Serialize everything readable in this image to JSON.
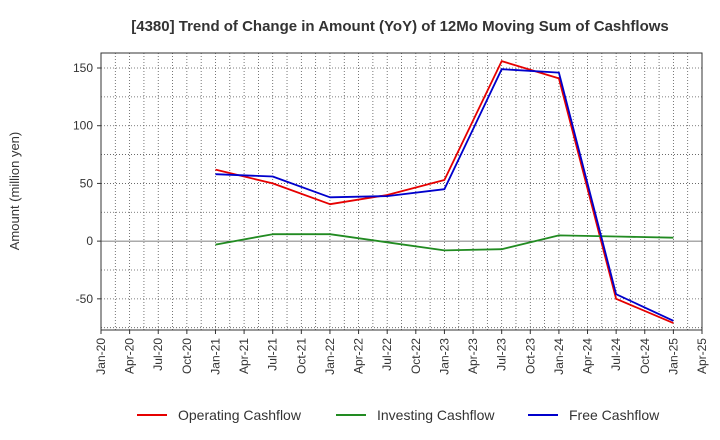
{
  "chart_data": {
    "type": "line",
    "title": "[4380]  Trend of Change in Amount (YoY) of 12Mo Moving Sum of Cashflows",
    "ylabel": "Amount (million yen)",
    "xlabel": "",
    "ylim": [
      -77,
      163
    ],
    "yticks": [
      150,
      100,
      50,
      0,
      -50
    ],
    "xticks": [
      "Jan-20",
      "Apr-20",
      "Jul-20",
      "Oct-20",
      "Jan-21",
      "Apr-21",
      "Jul-21",
      "Oct-21",
      "Jan-22",
      "Apr-22",
      "Jul-22",
      "Oct-22",
      "Jan-23",
      "Apr-23",
      "Jul-23",
      "Oct-23",
      "Jan-24",
      "Apr-24",
      "Jul-24",
      "Oct-24",
      "Jan-25",
      "Apr-25"
    ],
    "legend_position": "bottom",
    "series": [
      {
        "name": "Operating Cashflow",
        "color": "#e60000",
        "points": [
          [
            "Jan-21",
            62
          ],
          [
            "Jul-21",
            50
          ],
          [
            "Jan-22",
            32
          ],
          [
            "Jul-22",
            40
          ],
          [
            "Jan-23",
            53
          ],
          [
            "Jul-23",
            156
          ],
          [
            "Jan-24",
            141
          ],
          [
            "Jul-24",
            -50
          ],
          [
            "Jan-25",
            -71
          ]
        ]
      },
      {
        "name": "Investing Cashflow",
        "color": "#228b22",
        "points": [
          [
            "Jan-21",
            -3
          ],
          [
            "Jul-21",
            6
          ],
          [
            "Jan-22",
            6
          ],
          [
            "Jul-22",
            -1
          ],
          [
            "Jan-23",
            -8
          ],
          [
            "Jul-23",
            -7
          ],
          [
            "Jan-24",
            5
          ],
          [
            "Jul-24",
            4
          ],
          [
            "Jan-25",
            3
          ]
        ]
      },
      {
        "name": "Free Cashflow",
        "color": "#0000cc",
        "points": [
          [
            "Jan-21",
            58
          ],
          [
            "Jul-21",
            56
          ],
          [
            "Jan-22",
            38
          ],
          [
            "Jul-22",
            39
          ],
          [
            "Jan-23",
            45
          ],
          [
            "Jul-23",
            149
          ],
          [
            "Jan-24",
            146
          ],
          [
            "Jul-24",
            -46
          ],
          [
            "Jan-25",
            -69
          ]
        ]
      }
    ]
  }
}
